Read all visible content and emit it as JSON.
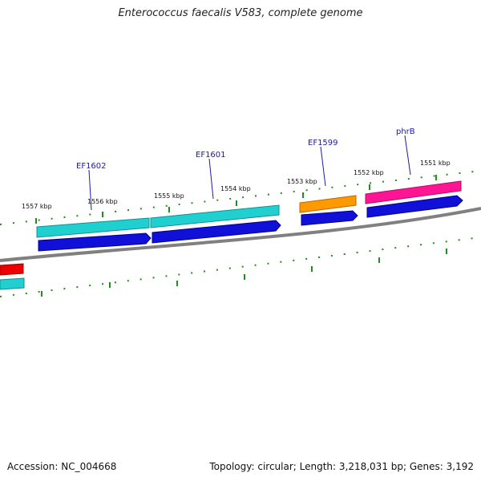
{
  "title": "Enterococcus faecalis V583, complete genome",
  "footer": {
    "accession": "Accession: NC_004668",
    "stats": "Topology: circular; Length: 3,218,031 bp; Genes: 3,192"
  },
  "colors": {
    "backbone": "#808080",
    "tick": "#228b22",
    "cds": "#1010d8",
    "gene_cyan": "#20d0d0",
    "gene_orange": "#ff9900",
    "gene_pink": "#ff1493",
    "gene_red": "#ee0000",
    "label": "#1a1aa6"
  },
  "ticks": [
    "1557 kbp",
    "1556 kbp",
    "1555 kbp",
    "1554 kbp",
    "1553 kbp",
    "1552 kbp",
    "1551 kbp"
  ],
  "genes": [
    {
      "label": "EF1602",
      "color": "cyan"
    },
    {
      "label": "EF1601",
      "color": "cyan"
    },
    {
      "label": "EF1599",
      "color": "orange"
    },
    {
      "label": "phrB",
      "color": "pink"
    }
  ]
}
